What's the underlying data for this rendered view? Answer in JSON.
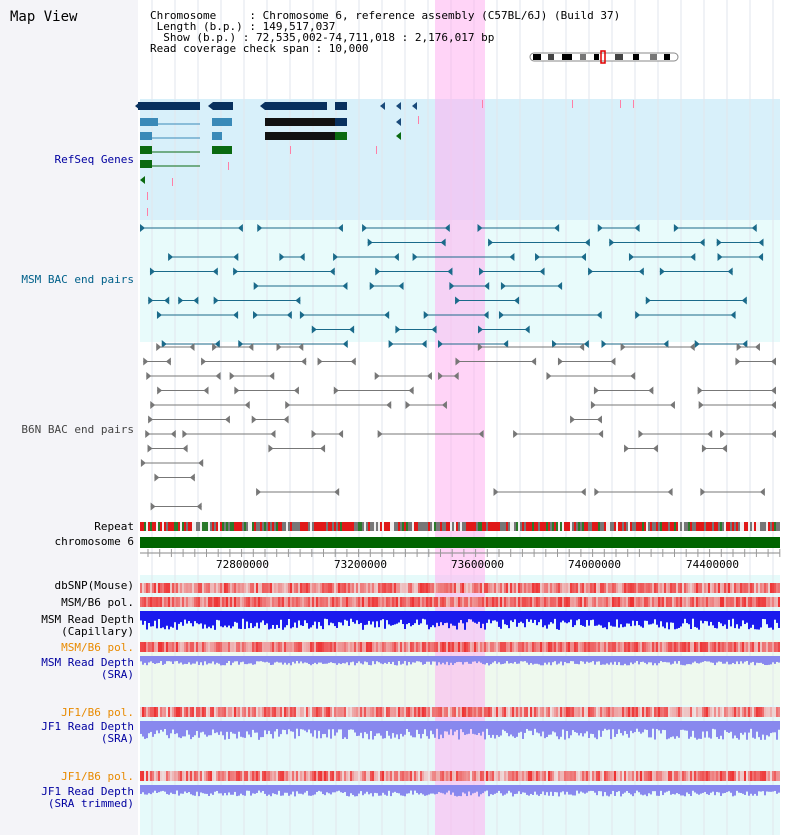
{
  "title": "Map View",
  "info": {
    "chromosome": "Chromosome     : Chromosome 6, reference assembly (C57BL/6J) (Build 37)",
    "length": " Length (b.p.) : 149,517,037",
    "show": "  Show (b.p.) : 72,535,002-74,711,018 : 2,176,017 bp",
    "coverage": "Read coverage check span : 10,000"
  },
  "tracks": {
    "refseq": "RefSeq Genes",
    "msm_bac": "MSM BAC end pairs",
    "b6n_bac": "B6N BAC end pairs",
    "repeat": "Repeat",
    "chromosome": "chromosome 6",
    "dbsnp": "dbSNP(Mouse)",
    "msm_b6_pol_1": "MSM/B6 pol.",
    "msm_depth_cap_1": "MSM Read Depth",
    "msm_depth_cap_2": "(Capillary)",
    "msm_b6_pol_2": "MSM/B6 pol.",
    "msm_depth_sra_1": "MSM Read Depth",
    "msm_depth_sra_2": "(SRA)",
    "jf1_pol_1": "JF1/B6 pol.",
    "jf1_depth_1": "JF1 Read Depth",
    "jf1_depth_2": "(SRA)",
    "jf1_pol_2": "JF1/B6 pol.",
    "jf1_trim_1": "JF1 Read Depth",
    "jf1_trim_2": "(SRA trimmed)"
  },
  "axis": {
    "ticks": [
      "72800000",
      "73200000",
      "73600000",
      "74000000",
      "74400000"
    ]
  },
  "colors": {
    "refseq_bg": "#d8f0fa",
    "bac_bg": "#e8fbfb",
    "highlight": "#ffb0f0",
    "chrom_bar": "#006400",
    "depth_cap": "#1a1aee",
    "depth_sra": "#8888ee",
    "snp": "#ee3333"
  }
}
